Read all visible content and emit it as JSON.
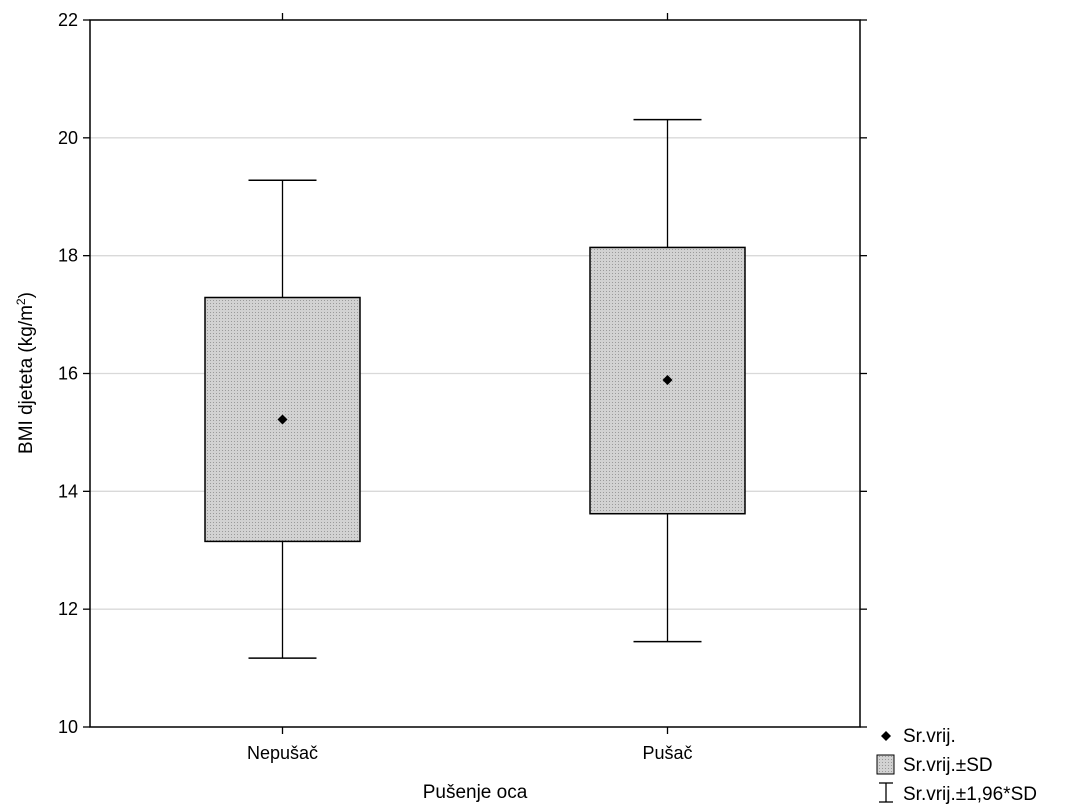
{
  "chart_data": {
    "type": "box",
    "xlabel": "Pušenje oca",
    "ylabel_main": "BMI djeteta (kg/m",
    "ylabel_sup": "2",
    "ylabel_close": ")",
    "ylim": [
      10,
      22
    ],
    "yticks": [
      10,
      12,
      14,
      16,
      18,
      20,
      22
    ],
    "grid": true,
    "legend_position": "bottom-right, outside plot",
    "categories": [
      "Nepušač",
      "Pušač"
    ],
    "boxes": [
      {
        "category": "Nepušač",
        "mean": 15.22,
        "sd_low": 13.15,
        "sd_high": 17.29,
        "ci_low": 11.17,
        "ci_high": 19.28
      },
      {
        "category": "Pušač",
        "mean": 15.89,
        "sd_low": 13.62,
        "sd_high": 18.14,
        "ci_low": 11.45,
        "ci_high": 20.31
      }
    ],
    "legend": [
      {
        "symbol": "diamond",
        "label": "Sr.vrij."
      },
      {
        "symbol": "box",
        "label": "Sr.vrij.±SD"
      },
      {
        "symbol": "whisker",
        "label": "Sr.vrij.±1,96*SD"
      }
    ],
    "colors": {
      "box_fill": "#cfcfcf",
      "grid": "#d9d9d9",
      "stroke": "#000000"
    }
  }
}
